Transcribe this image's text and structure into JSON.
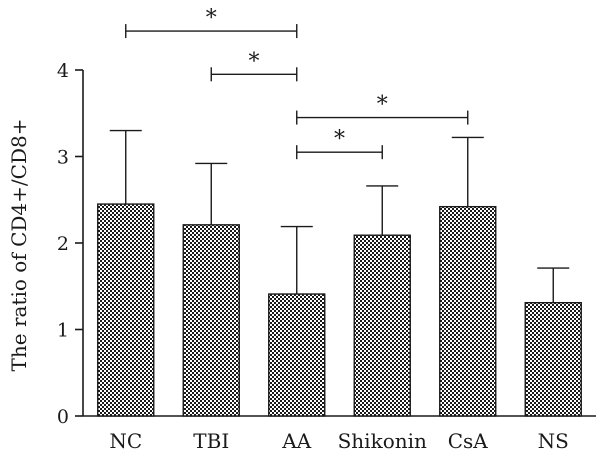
{
  "chart_data": {
    "type": "bar",
    "title": "",
    "xlabel": "",
    "ylabel": "The ratio of CD4+/CD8+",
    "ylim": [
      0,
      4
    ],
    "yticks": [
      "0",
      "1",
      "2",
      "3",
      "4"
    ],
    "categories": [
      "NC",
      "TBI",
      "AA",
      "Shikonin",
      "CsA",
      "NS"
    ],
    "values": [
      2.45,
      2.21,
      1.41,
      2.09,
      2.42,
      1.31
    ],
    "errors": [
      0.85,
      0.71,
      0.78,
      0.57,
      0.8,
      0.4
    ],
    "significance": [
      {
        "from": "NC",
        "to": "AA",
        "y": 4.45,
        "label": "*"
      },
      {
        "from": "TBI",
        "to": "AA",
        "y": 3.95,
        "label": "*"
      },
      {
        "from": "AA",
        "to": "CsA",
        "y": 3.45,
        "label": "*"
      },
      {
        "from": "AA",
        "to": "Shikonin",
        "y": 3.05,
        "label": "*"
      }
    ],
    "grid": false,
    "bar_pattern": "checkerboard"
  }
}
